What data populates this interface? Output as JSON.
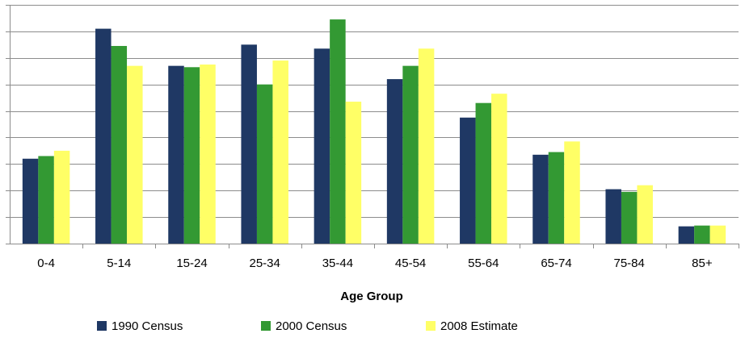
{
  "chart_data": {
    "type": "bar",
    "title": "",
    "xlabel": "Age Group",
    "ylabel": "",
    "categories": [
      "0-4",
      "5-14",
      "15-24",
      "25-34",
      "35-44",
      "45-54",
      "55-64",
      "65-74",
      "75-84",
      "85+"
    ],
    "series": [
      {
        "name": "1990 Census",
        "color": "#1f3864",
        "values": [
          3.2,
          8.1,
          6.7,
          7.5,
          7.35,
          6.2,
          4.75,
          3.35,
          2.05,
          0.65
        ]
      },
      {
        "name": "2000 Census",
        "color": "#339933",
        "values": [
          3.3,
          7.45,
          6.65,
          6.0,
          8.45,
          6.7,
          5.3,
          3.45,
          1.95,
          0.68
        ]
      },
      {
        "name": "2008 Estimate",
        "color": "#ffff66",
        "values": [
          3.5,
          6.7,
          6.75,
          6.9,
          5.35,
          7.35,
          5.65,
          3.85,
          2.2,
          0.68
        ]
      }
    ],
    "ylim": [
      0,
      9
    ],
    "y_tick_step": 1,
    "grid": true,
    "legend_position": "bottom"
  }
}
